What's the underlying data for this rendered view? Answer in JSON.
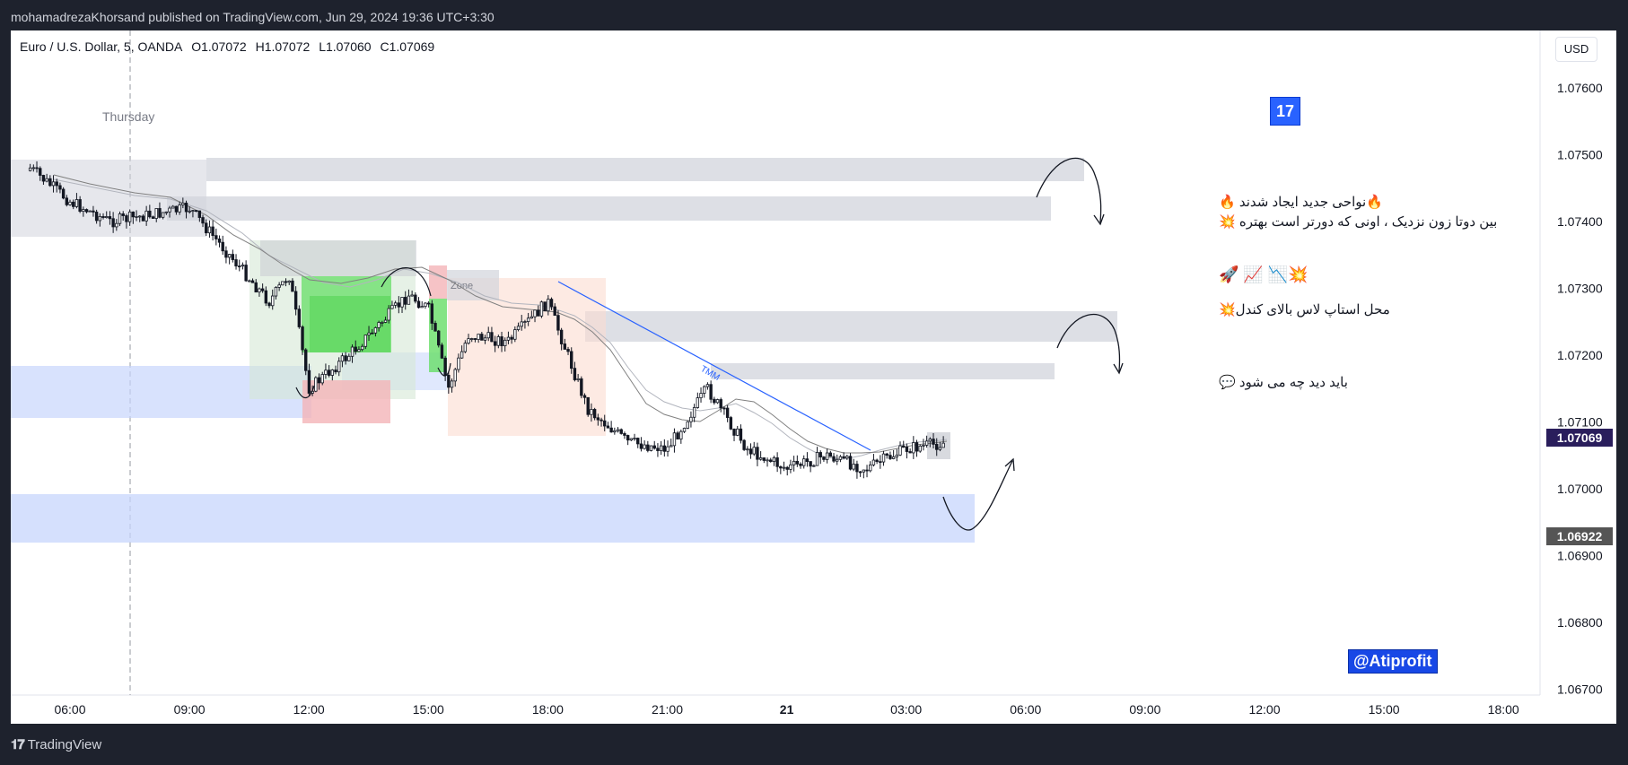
{
  "header": {
    "published_text": "mohamadrezaKhorsand published on TradingView.com, Jun 29, 2024 19:36 UTC+3:30"
  },
  "legend": {
    "symbol": "Euro / U.S. Dollar, 5, OANDA",
    "open": "O1.07072",
    "high": "H1.07072",
    "low": "L1.07060",
    "close": "C1.07069"
  },
  "currency_button": "USD",
  "price_axis": {
    "ticks": [
      "1.07600",
      "1.07500",
      "1.07400",
      "1.07300",
      "1.07200",
      "1.07100",
      "1.07000",
      "1.06900",
      "1.06800",
      "1.06700"
    ],
    "current_price": "1.07069",
    "marked_price": "1.06922",
    "colors": {
      "current": "#2a1e5c",
      "marked": "#555555"
    }
  },
  "time_axis": {
    "ticks": [
      "06:00",
      "09:00",
      "12:00",
      "15:00",
      "18:00",
      "21:00",
      "21",
      "03:00",
      "06:00",
      "09:00",
      "12:00",
      "15:00",
      "18:00"
    ]
  },
  "chart_labels": {
    "day_label": "Thursday",
    "zone_label": "Zone",
    "trendline_label": "TMM"
  },
  "annotations": {
    "badge": "17",
    "line1": "🔥نواحی جدید ایجاد شدند 🔥",
    "line2": "بین دوتا زون نزدیک ، اونی که دورتر است بهتره 💥",
    "emoji_row": "🚀 📈  📉💥",
    "line3": "محل استاپ لاس بالای کندل💥",
    "line4": "باید دید چه می شود 💬",
    "watermark": "@Atiprofit"
  },
  "branding": {
    "footer_logo": "TradingView"
  },
  "chart_data": {
    "type": "candlestick",
    "symbol": "EUR/USD",
    "timeframe": "5",
    "ylim": [
      1.0665,
      1.0765
    ],
    "x_ticks": [
      "06:00",
      "09:00",
      "12:00",
      "15:00",
      "18:00",
      "21:00",
      "21",
      "03:00",
      "06:00",
      "09:00",
      "12:00",
      "15:00",
      "18:00"
    ],
    "close_path": [
      [
        "05:00",
        1.0748
      ],
      [
        "06:00",
        1.0743
      ],
      [
        "07:00",
        1.074
      ],
      [
        "08:00",
        1.0741
      ],
      [
        "09:00",
        1.0742
      ],
      [
        "10:00",
        1.0735
      ],
      [
        "11:00",
        1.0728
      ],
      [
        "11:30",
        1.0732
      ],
      [
        "12:00",
        1.0715
      ],
      [
        "13:00",
        1.072
      ],
      [
        "14:00",
        1.0726
      ],
      [
        "14:30",
        1.0729
      ],
      [
        "15:00",
        1.0727
      ],
      [
        "15:30",
        1.0715
      ],
      [
        "16:00",
        1.0723
      ],
      [
        "17:00",
        1.0722
      ],
      [
        "18:00",
        1.0728
      ],
      [
        "19:00",
        1.0712
      ],
      [
        "20:00",
        1.0707
      ],
      [
        "21:00",
        1.0706
      ],
      [
        "22:00",
        1.0715
      ],
      [
        "23:00",
        1.0706
      ],
      [
        "00:00",
        1.0703
      ],
      [
        "01:00",
        1.0705
      ],
      [
        "02:00",
        1.0703
      ],
      [
        "03:00",
        1.0706
      ],
      [
        "04:00",
        1.07069
      ]
    ],
    "zones": [
      {
        "kind": "supply",
        "from": 1.0748,
        "to": 1.07455
      },
      {
        "kind": "supply",
        "from": 1.0743,
        "to": 1.07395
      },
      {
        "kind": "supply",
        "from": 1.0725,
        "to": 1.07205
      },
      {
        "kind": "supply",
        "from": 1.0718,
        "to": 1.07158
      },
      {
        "kind": "demand",
        "from": 1.0716,
        "to": 1.0708
      },
      {
        "kind": "demand",
        "from": 1.0698,
        "to": 1.0691
      }
    ]
  }
}
